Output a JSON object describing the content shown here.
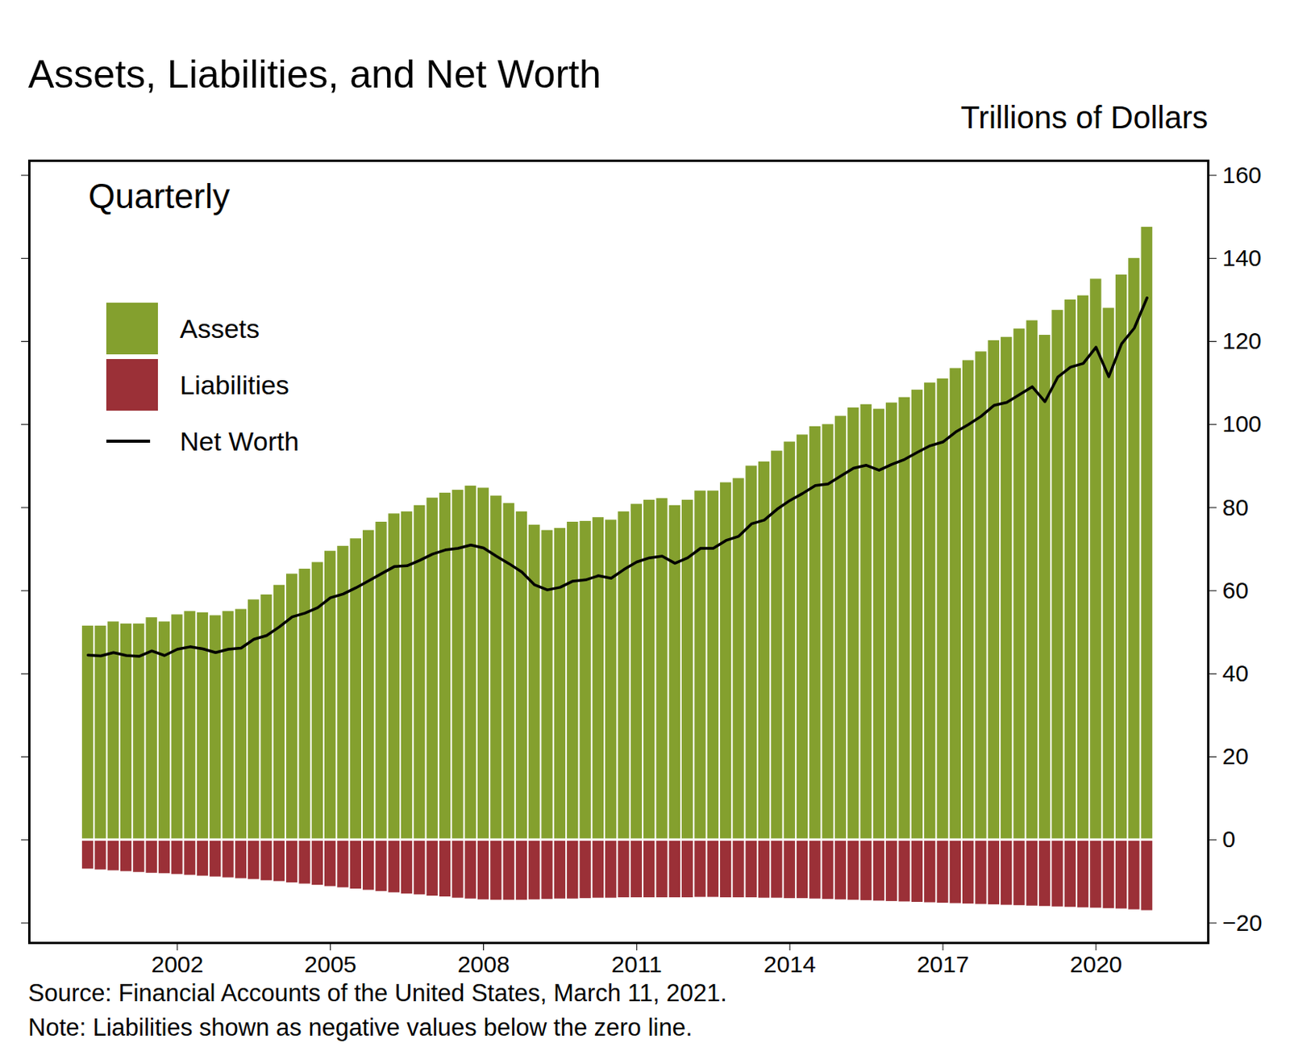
{
  "chart_data": {
    "type": "bar",
    "title": "Assets, Liabilities, and Net Worth",
    "subtitle": "Quarterly",
    "y_label": "Trillions of Dollars",
    "source": "Source: Financial Accounts of the United States, March 11, 2021.",
    "note": "Note: Liabilities shown as negative values below the zero line.",
    "x": [
      2000.25,
      2000.5,
      2000.75,
      2001,
      2001.25,
      2001.5,
      2001.75,
      2002,
      2002.25,
      2002.5,
      2002.75,
      2003,
      2003.25,
      2003.5,
      2003.75,
      2004,
      2004.25,
      2004.5,
      2004.75,
      2005,
      2005.25,
      2005.5,
      2005.75,
      2006,
      2006.25,
      2006.5,
      2006.75,
      2007,
      2007.25,
      2007.5,
      2007.75,
      2008,
      2008.25,
      2008.5,
      2008.75,
      2009,
      2009.25,
      2009.5,
      2009.75,
      2010,
      2010.25,
      2010.5,
      2010.75,
      2011,
      2011.25,
      2011.5,
      2011.75,
      2012,
      2012.25,
      2012.5,
      2012.75,
      2013,
      2013.25,
      2013.5,
      2013.75,
      2014,
      2014.25,
      2014.5,
      2014.75,
      2015,
      2015.25,
      2015.5,
      2015.75,
      2016,
      2016.25,
      2016.5,
      2016.75,
      2017,
      2017.25,
      2017.5,
      2017.75,
      2018,
      2018.25,
      2018.5,
      2018.75,
      2019,
      2019.25,
      2019.5,
      2019.75,
      2020,
      2020.25,
      2020.5,
      2020.75,
      2021
    ],
    "series": [
      {
        "name": "Assets",
        "color": "#84a02e",
        "type": "bar",
        "values": [
          51.5,
          51.5,
          52.5,
          52,
          52,
          53.5,
          52.5,
          54.2,
          55,
          54.7,
          54,
          55,
          55.5,
          57.8,
          59,
          61.3,
          64,
          65.2,
          66.8,
          69.5,
          70.7,
          72.5,
          74.5,
          76.5,
          78.5,
          79,
          80.5,
          82.3,
          83.5,
          84.2,
          85.2,
          84.7,
          82.8,
          81,
          79,
          75.8,
          74.5,
          75,
          76.5,
          76.7,
          77.6,
          77,
          79,
          80.8,
          81.8,
          82.2,
          80.5,
          81.8,
          84,
          84,
          86,
          87,
          90,
          91,
          93.6,
          95.8,
          97.5,
          99.5,
          100,
          102,
          104,
          104.8,
          103.7,
          105.2,
          106.5,
          108.3,
          110,
          111,
          113.5,
          115.4,
          117.5,
          120.2,
          121,
          123,
          125,
          121.5,
          127.5,
          130,
          131,
          135,
          128,
          136,
          140,
          147.5
        ]
      },
      {
        "name": "Liabilities",
        "color": "#9b3037",
        "type": "bar",
        "values": [
          -7.0,
          -7.2,
          -7.4,
          -7.6,
          -7.8,
          -8.0,
          -8.1,
          -8.3,
          -8.5,
          -8.7,
          -8.9,
          -9.1,
          -9.3,
          -9.5,
          -9.8,
          -10.0,
          -10.3,
          -10.6,
          -10.9,
          -11.2,
          -11.5,
          -11.8,
          -12.1,
          -12.4,
          -12.7,
          -13.0,
          -13.2,
          -13.5,
          -13.7,
          -14.0,
          -14.2,
          -14.4,
          -14.5,
          -14.5,
          -14.5,
          -14.4,
          -14.3,
          -14.2,
          -14.2,
          -14.1,
          -14.0,
          -14.0,
          -13.9,
          -13.9,
          -13.9,
          -13.9,
          -13.9,
          -13.9,
          -13.8,
          -13.8,
          -13.9,
          -13.9,
          -13.9,
          -14.0,
          -14.0,
          -14.1,
          -14.1,
          -14.2,
          -14.3,
          -14.4,
          -14.5,
          -14.6,
          -14.7,
          -14.8,
          -14.9,
          -15.0,
          -15.1,
          -15.2,
          -15.3,
          -15.4,
          -15.5,
          -15.6,
          -15.7,
          -15.8,
          -15.9,
          -16.0,
          -16.1,
          -16.2,
          -16.3,
          -16.4,
          -16.5,
          -16.6,
          -16.8,
          -17.0
        ]
      },
      {
        "name": "Net Worth",
        "color": "#000000",
        "type": "line",
        "values": [
          44.5,
          44.3,
          45.1,
          44.4,
          44.2,
          45.5,
          44.4,
          45.9,
          46.5,
          46.0,
          45.1,
          45.9,
          46.2,
          48.3,
          49.2,
          51.3,
          53.7,
          54.6,
          55.9,
          58.3,
          59.2,
          60.7,
          62.4,
          64.1,
          65.8,
          66.0,
          67.3,
          68.8,
          69.8,
          70.2,
          71.0,
          70.3,
          68.3,
          66.5,
          64.5,
          61.4,
          60.2,
          60.8,
          62.3,
          62.6,
          63.6,
          63.0,
          65.1,
          66.9,
          67.9,
          68.3,
          66.6,
          67.9,
          70.2,
          70.2,
          72.1,
          73.1,
          76.1,
          77.0,
          79.6,
          81.7,
          83.4,
          85.3,
          85.7,
          87.6,
          89.5,
          90.2,
          89.0,
          90.4,
          91.6,
          93.3,
          94.9,
          95.8,
          98.2,
          100.0,
          102.0,
          104.6,
          105.3,
          107.2,
          109.1,
          105.5,
          111.4,
          113.8,
          114.7,
          118.6,
          111.5,
          119.4,
          123.2,
          130.5
        ]
      }
    ],
    "xlim": [
      1999.1,
      2022.2
    ],
    "xticks": [
      2002,
      2005,
      2008,
      2011,
      2014,
      2017,
      2020
    ],
    "ylim": [
      -24.8,
      163.5
    ],
    "yticks": [
      -20,
      0,
      20,
      40,
      60,
      80,
      100,
      120,
      140,
      160
    ],
    "grid": false,
    "legend": "top-left"
  }
}
